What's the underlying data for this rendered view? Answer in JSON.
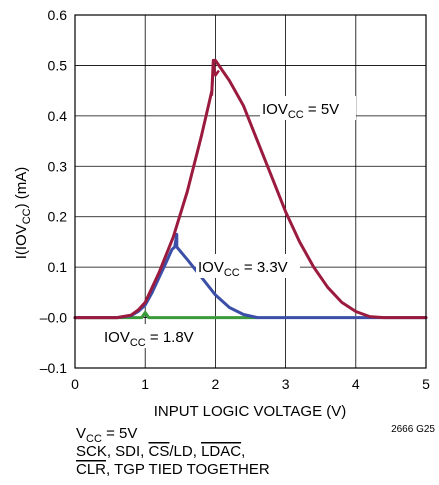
{
  "chart_data": {
    "type": "line",
    "xlabel": "INPUT LOGIC VOLTAGE (V)",
    "ylabel": {
      "pre": "I(IOV",
      "sub": "CC",
      "post": ") (mA)"
    },
    "xlim": [
      0,
      5
    ],
    "ylim": [
      -0.1,
      0.6
    ],
    "xticks": [
      "0",
      "1",
      "2",
      "3",
      "4",
      "5"
    ],
    "yticks": [
      "0.6",
      "0.5",
      "0.4",
      "0.3",
      "0.2",
      "0.1",
      "–0.0",
      "–0.1"
    ],
    "grid": true,
    "series": [
      {
        "name": "IOVCC = 5V",
        "label": {
          "pre": "IOV",
          "sub": "CC",
          "post": " = 5V"
        },
        "color": "#9b1b3f",
        "points": [
          [
            -0.1,
            0
          ],
          [
            0.6,
            0
          ],
          [
            0.8,
            0.005
          ],
          [
            0.9,
            0.015
          ],
          [
            1.0,
            0.03
          ],
          [
            1.2,
            0.09
          ],
          [
            1.4,
            0.16
          ],
          [
            1.6,
            0.25
          ],
          [
            1.8,
            0.36
          ],
          [
            1.9,
            0.42
          ],
          [
            1.95,
            0.45
          ],
          [
            1.97,
            0.51
          ],
          [
            2.0,
            0.51
          ],
          [
            2.1,
            0.49
          ],
          [
            2.2,
            0.47
          ],
          [
            2.4,
            0.42
          ],
          [
            2.6,
            0.35
          ],
          [
            2.8,
            0.28
          ],
          [
            3.0,
            0.21
          ],
          [
            3.2,
            0.15
          ],
          [
            3.4,
            0.1
          ],
          [
            3.6,
            0.06
          ],
          [
            3.8,
            0.03
          ],
          [
            4.0,
            0.012
          ],
          [
            4.2,
            0.002
          ],
          [
            4.4,
            0
          ],
          [
            5.0,
            0
          ]
        ],
        "spike": [
          [
            1.95,
            0.44
          ],
          [
            1.97,
            0.51
          ],
          [
            2.0,
            0.48
          ],
          [
            2.05,
            0.49
          ]
        ]
      },
      {
        "name": "IOVCC = 3.3V",
        "label": {
          "pre": "IOV",
          "sub": "CC",
          "post": " = 3.3V"
        },
        "color": "#3b4fa8",
        "points": [
          [
            -0.1,
            0
          ],
          [
            0.6,
            0
          ],
          [
            0.8,
            0.004
          ],
          [
            0.9,
            0.012
          ],
          [
            1.0,
            0.025
          ],
          [
            1.1,
            0.05
          ],
          [
            1.2,
            0.08
          ],
          [
            1.3,
            0.11
          ],
          [
            1.38,
            0.135
          ],
          [
            1.42,
            0.14
          ],
          [
            1.45,
            0.165
          ],
          [
            1.45,
            0.14
          ],
          [
            1.6,
            0.115
          ],
          [
            1.8,
            0.08
          ],
          [
            2.0,
            0.045
          ],
          [
            2.2,
            0.02
          ],
          [
            2.4,
            0.006
          ],
          [
            2.6,
            0
          ],
          [
            5.0,
            0
          ]
        ]
      },
      {
        "name": "IOVCC = 1.8V",
        "label": {
          "pre": "IOV",
          "sub": "CC",
          "post": " = 1.8V"
        },
        "color": "#3b9a3a",
        "points": [
          [
            -0.1,
            0
          ],
          [
            0.95,
            0
          ],
          [
            1.0,
            0.01
          ],
          [
            1.05,
            0
          ],
          [
            2.6,
            0
          ]
        ]
      }
    ],
    "footnote_id": "2666 G25",
    "conditions": {
      "line1": {
        "pre": "V",
        "sub": "CC",
        "post": " = 5V"
      },
      "line2": [
        "SCK, SDI, ",
        "CS",
        "/LD, ",
        "LDAC",
        ","
      ],
      "line3": [
        "CLR",
        ", TGP TIED TOGETHER"
      ]
    }
  }
}
